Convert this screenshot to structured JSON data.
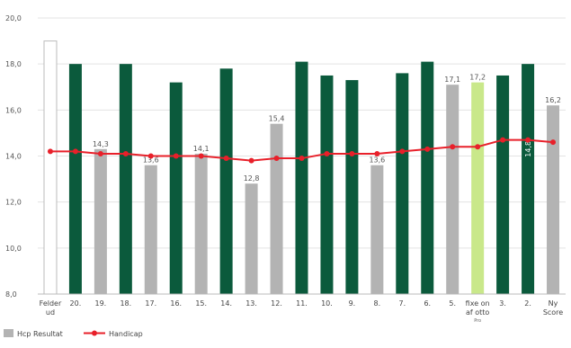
{
  "chart_data": {
    "type": "bar",
    "ylim": [
      8.0,
      20.0
    ],
    "yticks": [
      "8,0",
      "10,0",
      "12,0",
      "14,0",
      "16,0",
      "18,0",
      "20,0"
    ],
    "grid": true,
    "legend_position": "bottom-left",
    "categories": [
      {
        "label": "Felder",
        "label2": "ud",
        "sub": ""
      },
      {
        "label": "20.",
        "label2": "",
        "sub": ""
      },
      {
        "label": "19.",
        "label2": "",
        "sub": ""
      },
      {
        "label": "18.",
        "label2": "",
        "sub": ""
      },
      {
        "label": "17.",
        "label2": "",
        "sub": ""
      },
      {
        "label": "16.",
        "label2": "",
        "sub": ""
      },
      {
        "label": "15.",
        "label2": "",
        "sub": ""
      },
      {
        "label": "14.",
        "label2": "",
        "sub": ""
      },
      {
        "label": "13.",
        "label2": "",
        "sub": ""
      },
      {
        "label": "12.",
        "label2": "",
        "sub": ""
      },
      {
        "label": "11.",
        "label2": "",
        "sub": ""
      },
      {
        "label": "10.",
        "label2": "",
        "sub": ""
      },
      {
        "label": "9.",
        "label2": "",
        "sub": ""
      },
      {
        "label": "8.",
        "label2": "",
        "sub": ""
      },
      {
        "label": "7.",
        "label2": "",
        "sub": ""
      },
      {
        "label": "6.",
        "label2": "",
        "sub": ""
      },
      {
        "label": "5.",
        "label2": "",
        "sub": ""
      },
      {
        "label": "fixe on",
        "label2": "af otto",
        "sub": "Pro"
      },
      {
        "label": "3.",
        "label2": "",
        "sub": ""
      },
      {
        "label": "2.",
        "label2": "",
        "sub": ""
      },
      {
        "label": "Ny",
        "label2": "Score",
        "sub": ""
      }
    ],
    "bars": [
      {
        "value": 19.0,
        "kind": "outline",
        "label": ""
      },
      {
        "value": 18.0,
        "kind": "green",
        "label": ""
      },
      {
        "value": 14.3,
        "kind": "grey",
        "label": "14,3"
      },
      {
        "value": 18.0,
        "kind": "green",
        "label": ""
      },
      {
        "value": 13.6,
        "kind": "grey",
        "label": "13,6"
      },
      {
        "value": 17.2,
        "kind": "green",
        "label": ""
      },
      {
        "value": 14.1,
        "kind": "grey",
        "label": "14,1"
      },
      {
        "value": 17.8,
        "kind": "green",
        "label": ""
      },
      {
        "value": 12.8,
        "kind": "grey",
        "label": "12,8"
      },
      {
        "value": 15.4,
        "kind": "grey",
        "label": "15,4"
      },
      {
        "value": 18.1,
        "kind": "green",
        "label": ""
      },
      {
        "value": 17.5,
        "kind": "green",
        "label": ""
      },
      {
        "value": 17.3,
        "kind": "green",
        "label": ""
      },
      {
        "value": 13.6,
        "kind": "grey",
        "label": "13,6"
      },
      {
        "value": 17.6,
        "kind": "green",
        "label": ""
      },
      {
        "value": 18.1,
        "kind": "green",
        "label": ""
      },
      {
        "value": 17.1,
        "kind": "grey",
        "label": "17,1"
      },
      {
        "value": 17.2,
        "kind": "light",
        "label": "17,2"
      },
      {
        "value": 17.5,
        "kind": "green",
        "label": ""
      },
      {
        "value": 18.0,
        "kind": "green",
        "label": "14,8"
      },
      {
        "value": 16.2,
        "kind": "grey",
        "label": "16,2"
      }
    ],
    "series": [
      {
        "name": "Handicap",
        "type": "line",
        "color": "#e8202a",
        "values": [
          14.2,
          14.2,
          14.1,
          14.1,
          14.0,
          14.0,
          14.0,
          13.9,
          13.8,
          13.9,
          13.9,
          14.1,
          14.1,
          14.1,
          14.2,
          14.3,
          14.4,
          14.4,
          14.7,
          14.7,
          14.6
        ]
      }
    ],
    "legend": [
      {
        "name": "Hcp Resultat",
        "color": "#b3b3b3",
        "marker": "square"
      },
      {
        "name": "Handicap",
        "color": "#e8202a",
        "marker": "line-dot"
      }
    ],
    "colors": {
      "green": "#0b5a3c",
      "grey": "#b3b3b3",
      "light": "#c9e88a",
      "outline": "#ffffff",
      "outline_stroke": "#bbbbbb",
      "line": "#e8202a",
      "grid": "#e3e3e3"
    }
  }
}
